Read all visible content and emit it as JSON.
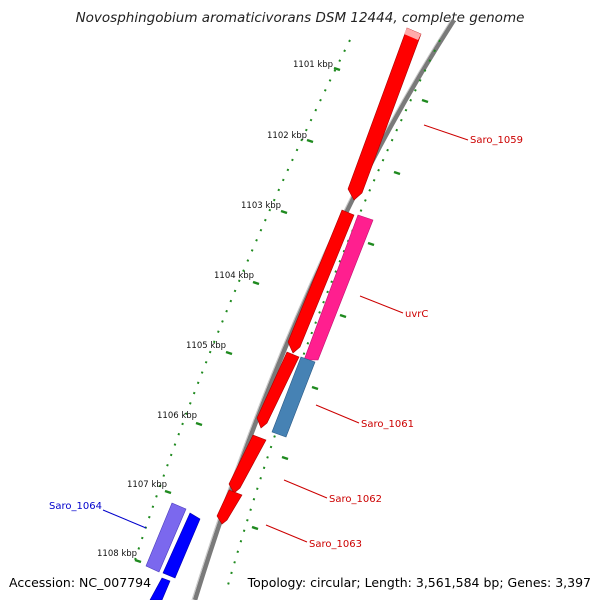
{
  "header": {
    "title": "Novosphingobium aromaticivorans DSM 12444, complete genome"
  },
  "footer": {
    "accession": "Accession: NC_007794",
    "summary": "Topology: circular; Length: 3,561,584 bp; Genes: 3,397"
  },
  "ticks": [
    "1101 kbp",
    "1102 kbp",
    "1103 kbp",
    "1104 kbp",
    "1105 kbp",
    "1106 kbp",
    "1107 kbp",
    "1108 kbp"
  ],
  "genes": [
    {
      "name": "Saro_1059",
      "color": "#cc0000"
    },
    {
      "name": "uvrC",
      "color": "#cc0000"
    },
    {
      "name": "Saro_1061",
      "color": "#cc0000"
    },
    {
      "name": "Saro_1062",
      "color": "#cc0000"
    },
    {
      "name": "Saro_1063",
      "color": "#cc0000"
    },
    {
      "name": "Saro_1064",
      "color": "#0000cc"
    }
  ],
  "colors": {
    "forward_cds": "#ff0000",
    "reverse_cds": "#0000ff",
    "uvrC": "#ff1f8f",
    "saro_1061": "#4682b4",
    "saro_1064": "#7b68ee",
    "backbone": "#808080",
    "ticks": "#008000"
  }
}
